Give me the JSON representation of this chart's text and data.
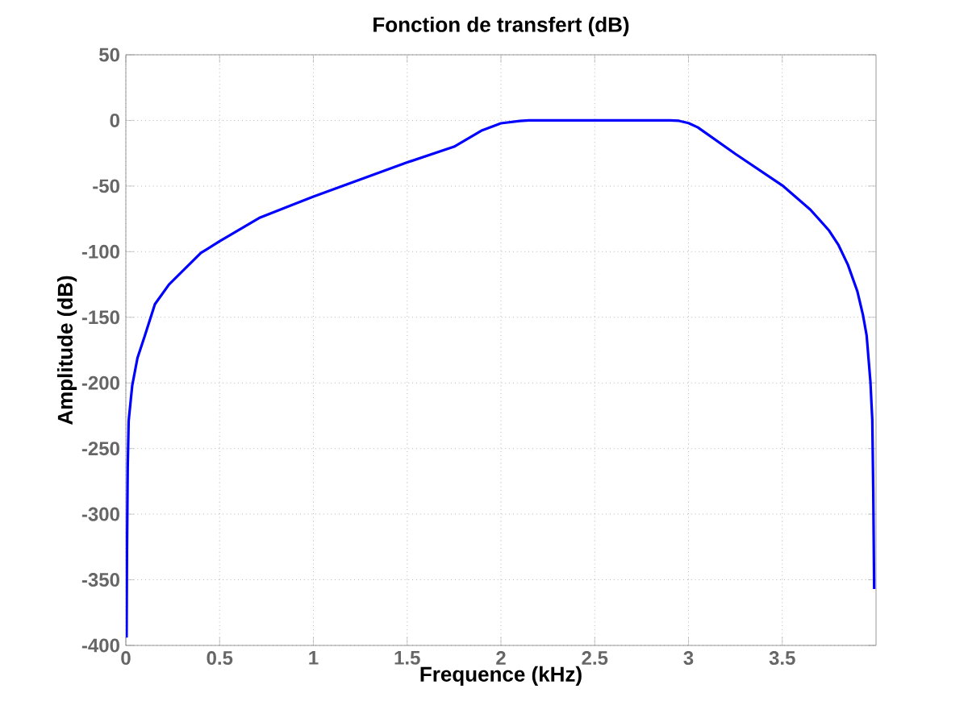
{
  "chart_data": {
    "type": "line",
    "title": "Fonction de transfert (dB)",
    "xlabel": "Frequence (kHz)",
    "ylabel": "Amplitude (dB)",
    "xlim": [
      0,
      4
    ],
    "ylim": [
      -400,
      50
    ],
    "xticks": [
      0,
      0.5,
      1,
      1.5,
      2,
      2.5,
      3,
      3.5
    ],
    "yticks": [
      -400,
      -350,
      -300,
      -250,
      -200,
      -150,
      -100,
      -50,
      0,
      50
    ],
    "grid": true,
    "series": [
      {
        "color": "#0000ff",
        "x": [
          0.004,
          0.006,
          0.01,
          0.015,
          0.034,
          0.062,
          0.099,
          0.155,
          0.23,
          0.4,
          0.5,
          0.716,
          1.0,
          1.5,
          1.75,
          1.9,
          2.0,
          2.1,
          2.15,
          2.5,
          2.9,
          2.95,
          3.0,
          3.05,
          3.25,
          3.5,
          3.65,
          3.75,
          3.8,
          3.85,
          3.9,
          3.93,
          3.95,
          3.97,
          3.98,
          3.985,
          3.99
        ],
        "values": [
          -394,
          -330,
          -265,
          -229,
          -202,
          -181,
          -165,
          -140,
          -125,
          -101,
          -92,
          -74,
          -58,
          -32,
          -20,
          -7.5,
          -2.2,
          -0.4,
          0,
          0,
          0,
          -0.3,
          -2,
          -5.3,
          -25.5,
          -49.5,
          -68,
          -84,
          -95,
          -110,
          -130,
          -148,
          -164,
          -199,
          -228,
          -280,
          -357
        ]
      }
    ]
  }
}
